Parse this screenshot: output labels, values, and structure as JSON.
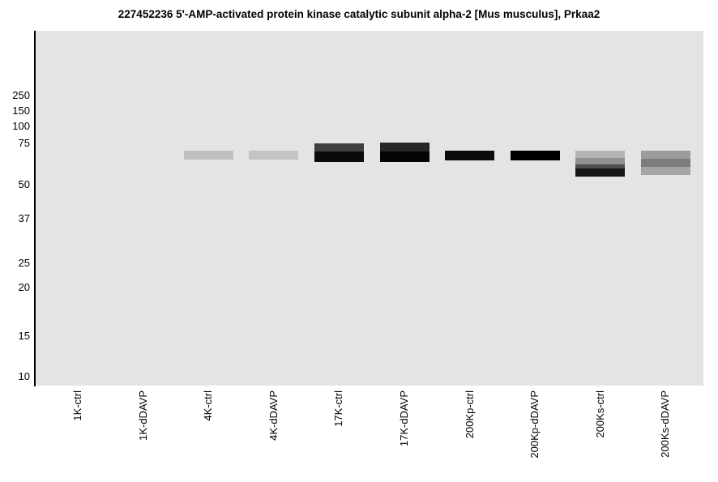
{
  "chart_data": {
    "type": "heatmap",
    "variant": "simulated-western-blot-gel",
    "title": "227452236 5'-AMP-activated protein kinase catalytic subunit alpha-2 [Mus musculus], Prkaa2",
    "y_scale": "log",
    "yticks": [
      250,
      150,
      100,
      75,
      50,
      37,
      25,
      20,
      15,
      10
    ],
    "lanes": [
      {
        "label": "1K-ctrl",
        "bands": []
      },
      {
        "label": "1K-dDAVP",
        "bands": []
      },
      {
        "label": "4K-ctrl",
        "bands": [
          {
            "kda_top": 70,
            "kda_bottom": 64,
            "color": "#bfbfbf"
          }
        ]
      },
      {
        "label": "4K-dDAVP",
        "bands": [
          {
            "kda_top": 70,
            "kda_bottom": 64,
            "color": "#c3c3c3"
          }
        ]
      },
      {
        "label": "17K-ctrl",
        "bands": [
          {
            "kda_top": 75.5,
            "kda_bottom": 69.5,
            "color": "#3f3f3f"
          },
          {
            "kda_top": 69.5,
            "kda_bottom": 62.5,
            "color": "#0a0a0a"
          }
        ]
      },
      {
        "label": "17K-dDAVP",
        "bands": [
          {
            "kda_top": 76,
            "kda_bottom": 69.5,
            "color": "#262626"
          },
          {
            "kda_top": 69.5,
            "kda_bottom": 62.5,
            "color": "#040404"
          }
        ]
      },
      {
        "label": "200Kp-ctrl",
        "bands": [
          {
            "kda_top": 70,
            "kda_bottom": 63.5,
            "color": "#0c0c0c"
          }
        ]
      },
      {
        "label": "200Kp-dDAVP",
        "bands": [
          {
            "kda_top": 70,
            "kda_bottom": 63.5,
            "color": "#010101"
          }
        ]
      },
      {
        "label": "200Ks-ctrl",
        "bands": [
          {
            "kda_top": 70,
            "kda_bottom": 65,
            "color": "#b3b3b3"
          },
          {
            "kda_top": 65,
            "kda_bottom": 61,
            "color": "#909090"
          },
          {
            "kda_top": 61,
            "kda_bottom": 58.5,
            "color": "#4d4d4d"
          },
          {
            "kda_top": 58.5,
            "kda_bottom": 54,
            "color": "#151515"
          }
        ]
      },
      {
        "label": "200Ks-dDAVP",
        "bands": [
          {
            "kda_top": 70,
            "kda_bottom": 64.5,
            "color": "#9c9c9c"
          },
          {
            "kda_top": 64.5,
            "kda_bottom": 59.5,
            "color": "#7d7d7d"
          },
          {
            "kda_top": 59.5,
            "kda_bottom": 55,
            "color": "#a6a6a6"
          }
        ]
      }
    ]
  },
  "colors": {
    "gel_background": "#e4e4e4",
    "axis": "#000000",
    "page_background": "#ffffff",
    "text": "#000000"
  }
}
